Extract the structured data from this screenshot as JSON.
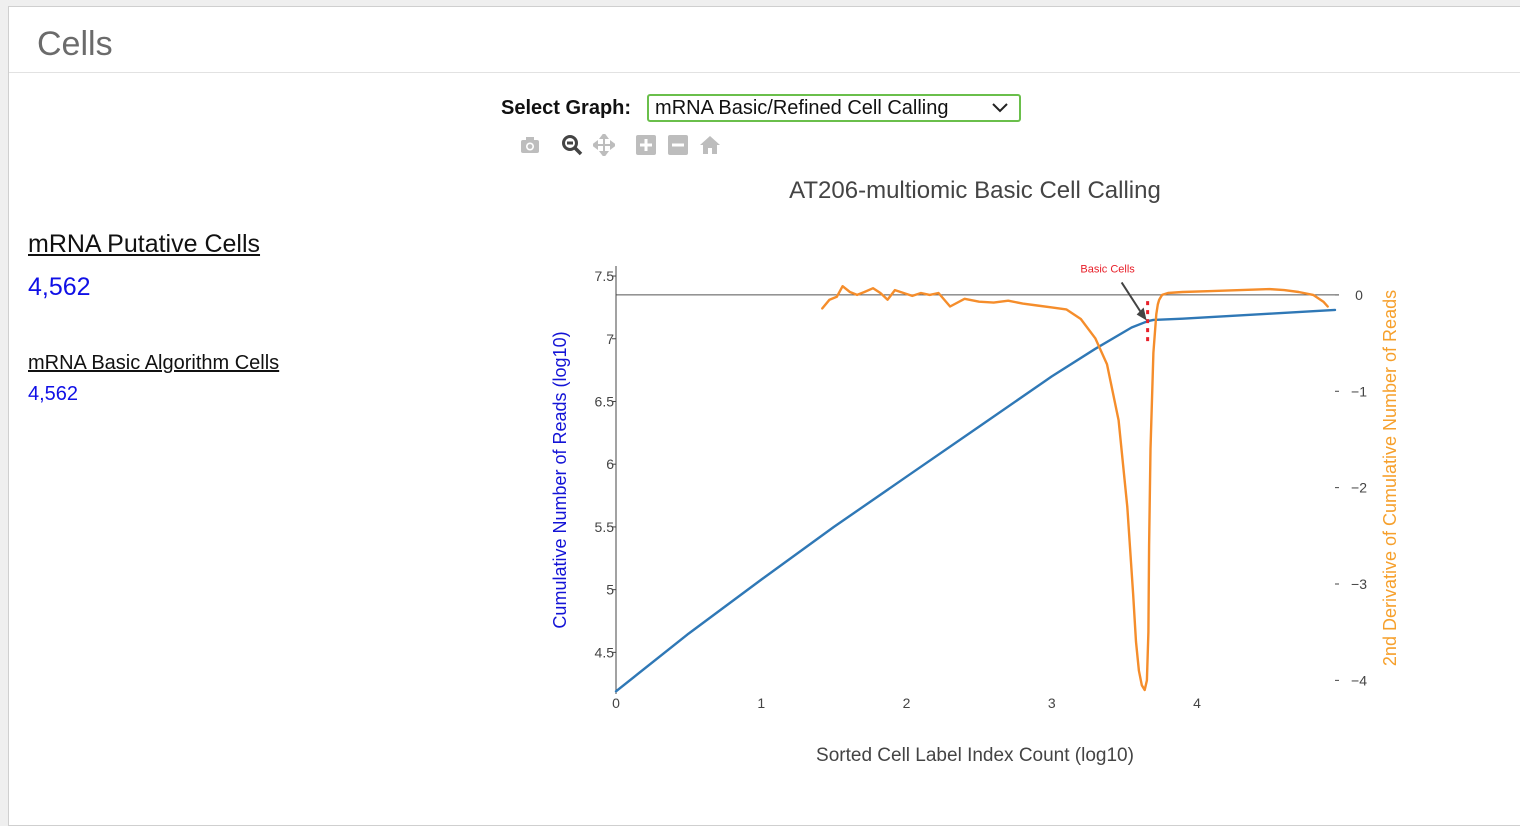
{
  "panel": {
    "title": "Cells"
  },
  "stats": {
    "putative": {
      "label": "mRNA Putative Cells",
      "value": "4,562"
    },
    "basic": {
      "label": "mRNA Basic Algorithm Cells",
      "value": "4,562"
    }
  },
  "graph_select": {
    "label": "Select Graph:",
    "selected": "mRNA Basic/Refined Cell Calling"
  },
  "modebar": {
    "icons": [
      "camera-icon",
      "zoom-icon",
      "pan-icon",
      "zoom-in-icon",
      "zoom-out-icon",
      "home-icon"
    ]
  },
  "colors": {
    "cumulative": "#2f78b6",
    "derivative": "#f58d2b",
    "annotation": "#e8202a",
    "left_axis_title": "#1313d6",
    "right_axis_title": "#f6a02c"
  },
  "chart_data": {
    "type": "line",
    "title": "AT206-multiomic Basic Cell Calling",
    "xlabel": "Sorted Cell Label Index Count (log10)",
    "ylabel": "Cumulative Number of Reads (log10)",
    "y2label": "2nd Derivative of Cumulative Number of Reads",
    "xlim": [
      0,
      4.95
    ],
    "ylim": [
      4.2,
      7.58
    ],
    "y2lim": [
      -4.1,
      0.3
    ],
    "xticks": [
      0,
      1,
      2,
      3,
      4
    ],
    "yticks": [
      4.5,
      5,
      5.5,
      6,
      6.5,
      7,
      7.5
    ],
    "y2ticks": [
      0,
      -1,
      -2,
      -3,
      -4
    ],
    "series": [
      {
        "name": "Cumulative Number of Reads",
        "axis": "y",
        "x": [
          0,
          0.5,
          1.0,
          1.5,
          2.0,
          2.5,
          3.0,
          3.3,
          3.55,
          3.66,
          3.7,
          3.9,
          4.2,
          4.5,
          4.8,
          4.95
        ],
        "y": [
          4.19,
          4.65,
          5.08,
          5.5,
          5.9,
          6.3,
          6.7,
          6.92,
          7.09,
          7.14,
          7.15,
          7.16,
          7.18,
          7.2,
          7.22,
          7.23
        ]
      },
      {
        "name": "2nd Derivative",
        "axis": "y2",
        "x": [
          1.42,
          1.47,
          1.52,
          1.56,
          1.61,
          1.66,
          1.71,
          1.77,
          1.82,
          1.87,
          1.92,
          1.98,
          2.04,
          2.1,
          2.16,
          2.22,
          2.3,
          2.4,
          2.5,
          2.6,
          2.7,
          2.8,
          2.9,
          3.0,
          3.1,
          3.2,
          3.3,
          3.38,
          3.46,
          3.52,
          3.56,
          3.58,
          3.6,
          3.62,
          3.64,
          3.655,
          3.665,
          3.67,
          3.68,
          3.7,
          3.72,
          3.73,
          3.74,
          3.76,
          3.8,
          3.9,
          4.1,
          4.3,
          4.5,
          4.6,
          4.7,
          4.8,
          4.87,
          4.9
        ],
        "y": [
          -0.14,
          -0.05,
          -0.02,
          0.09,
          0.03,
          0.0,
          0.03,
          0.07,
          0.02,
          -0.05,
          0.05,
          0.02,
          -0.01,
          0.02,
          0.0,
          0.02,
          -0.12,
          -0.04,
          -0.07,
          -0.08,
          -0.06,
          -0.09,
          -0.11,
          -0.13,
          -0.15,
          -0.25,
          -0.45,
          -0.72,
          -1.3,
          -2.2,
          -3.1,
          -3.6,
          -3.9,
          -4.05,
          -4.1,
          -4.0,
          -3.5,
          -2.6,
          -1.6,
          -0.6,
          -0.2,
          -0.1,
          -0.05,
          0.0,
          0.02,
          0.03,
          0.04,
          0.05,
          0.06,
          0.05,
          0.03,
          0.0,
          -0.07,
          -0.12
        ]
      }
    ],
    "reference_line": {
      "axis": "y2",
      "value": 0
    },
    "annotations": [
      {
        "text": "Basic Cells",
        "x": 3.66,
        "ymin": 6.97,
        "ymax": 7.3,
        "arrow_to_y": 7.13
      }
    ]
  }
}
